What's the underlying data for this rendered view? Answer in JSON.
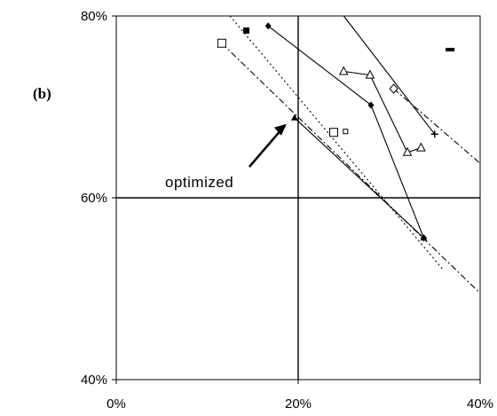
{
  "chart_data": {
    "type": "scatter",
    "panel_label": "(b)",
    "xlim": [
      0,
      40
    ],
    "ylim": [
      40,
      80
    ],
    "x_ticks": [
      "0%",
      "20%",
      "40%"
    ],
    "y_ticks": [
      "40%",
      "60%",
      "80%"
    ],
    "reference_lines": {
      "x": 20,
      "y": 60
    },
    "annotation": {
      "text": "optimized",
      "points_to": [
        19.6,
        68.8
      ]
    },
    "series": [
      {
        "marker": "triangle",
        "points": [
          [
            19.6,
            68.8
          ],
          [
            33.8,
            55.6
          ]
        ]
      },
      {
        "marker": "diamond",
        "points": [
          [
            16.7,
            78.9
          ],
          [
            28.0,
            70.2
          ],
          [
            33.8,
            55.6
          ]
        ]
      },
      {
        "marker": "open-triangle",
        "points": [
          [
            25.0,
            73.9
          ],
          [
            27.9,
            73.5
          ],
          [
            32.0,
            65.0
          ],
          [
            33.5,
            65.5
          ]
        ]
      },
      {
        "marker": "open-diamond",
        "points": [
          [
            30.5,
            72.0
          ]
        ]
      },
      {
        "marker": "plus",
        "points": [
          [
            35.0,
            67.0
          ]
        ]
      },
      {
        "marker": "square",
        "points": [
          [
            14.3,
            78.4
          ]
        ]
      },
      {
        "marker": "open-square",
        "points": [
          [
            11.6,
            77.0
          ]
        ]
      },
      {
        "marker": "open-square",
        "points": [
          [
            23.9,
            67.2
          ]
        ]
      },
      {
        "marker": "small-open-square",
        "points": [
          [
            25.2,
            67.3
          ]
        ]
      },
      {
        "marker": "dash",
        "points": [
          [
            36.7,
            76.3
          ]
        ]
      }
    ],
    "trend_lines": [
      {
        "style": "solid",
        "points": [
          [
            19.6,
            68.8
          ],
          [
            33.8,
            55.6
          ]
        ]
      },
      {
        "style": "solid",
        "points": [
          [
            25.0,
            80.0
          ],
          [
            35.0,
            67.0
          ]
        ]
      },
      {
        "style": "dotted",
        "points": [
          [
            12.5,
            80.0
          ],
          [
            36.0,
            52.0
          ]
        ]
      },
      {
        "style": "dashdot",
        "points": [
          [
            11.6,
            77.0
          ],
          [
            40.0,
            49.5
          ]
        ]
      },
      {
        "style": "dashdot",
        "points": [
          [
            30.5,
            72.0
          ],
          [
            40.0,
            63.8
          ]
        ]
      }
    ]
  }
}
